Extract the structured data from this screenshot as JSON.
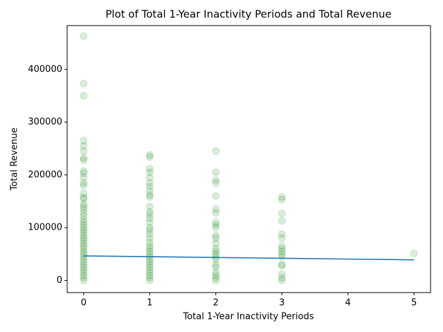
{
  "chart_data": {
    "type": "scatter",
    "title": "Plot of Total 1-Year Inactivity Periods and Total Revenue",
    "xlabel": "Total 1-Year Inactivity Periods",
    "ylabel": "Total Revenue",
    "xlim": [
      -0.25,
      5.25
    ],
    "ylim": [
      -23000,
      483000
    ],
    "xticks": [
      0,
      1,
      2,
      3,
      4,
      5
    ],
    "yticks": [
      0,
      100000,
      200000,
      300000,
      400000
    ],
    "series": [
      {
        "color": "green",
        "alpha": 0.15,
        "style": "points",
        "x": [
          0,
          0,
          0,
          0,
          0,
          0,
          0,
          0,
          0,
          0,
          0,
          0,
          0,
          0,
          0,
          0,
          0,
          0,
          0,
          0,
          0,
          0,
          0,
          0,
          0,
          0,
          0,
          0,
          0,
          0,
          0,
          0,
          0,
          0,
          0,
          0,
          0,
          0,
          0,
          0,
          0,
          0,
          0,
          0,
          0,
          1,
          1,
          1,
          1,
          1,
          1,
          1,
          1,
          1,
          1,
          1,
          1,
          1,
          1,
          1,
          1,
          1,
          1,
          1,
          1,
          1,
          1,
          1,
          1,
          1,
          1,
          1,
          1,
          1,
          1,
          1,
          1,
          1,
          1,
          2,
          2,
          2,
          2,
          2,
          2,
          2,
          2,
          2,
          2,
          2,
          2,
          2,
          2,
          2,
          2,
          2,
          2,
          2,
          2,
          2,
          2,
          2,
          2,
          3,
          3,
          3,
          3,
          3,
          3,
          3,
          3,
          3,
          3,
          3,
          3,
          3,
          3,
          3,
          3,
          5
        ],
        "values": [
          463000,
          373000,
          350000,
          265000,
          255000,
          245000,
          232000,
          228000,
          207000,
          203000,
          195000,
          185000,
          180000,
          165000,
          157000,
          155000,
          145000,
          140000,
          135000,
          128000,
          122000,
          115000,
          110000,
          105000,
          100000,
          95000,
          90000,
          85000,
          80000,
          75000,
          70000,
          65000,
          60000,
          55000,
          50000,
          45000,
          40000,
          35000,
          30000,
          25000,
          20000,
          15000,
          10000,
          5000,
          0,
          238000,
          234000,
          212000,
          205000,
          195000,
          185000,
          178000,
          170000,
          162000,
          158000,
          140000,
          130000,
          125000,
          118000,
          110000,
          100000,
          95000,
          88000,
          80000,
          72000,
          65000,
          60000,
          55000,
          50000,
          45000,
          40000,
          35000,
          30000,
          25000,
          20000,
          15000,
          10000,
          5000,
          0,
          245000,
          205000,
          190000,
          185000,
          160000,
          135000,
          128000,
          110000,
          105000,
          100000,
          85000,
          80000,
          70000,
          60000,
          55000,
          50000,
          45000,
          40000,
          30000,
          25000,
          15000,
          10000,
          5000,
          0,
          158000,
          153000,
          127000,
          113000,
          88000,
          80000,
          65000,
          60000,
          55000,
          50000,
          45000,
          30000,
          28000,
          12000,
          5000,
          0,
          51000
        ]
      },
      {
        "color": "#1f77b4",
        "alpha": 1,
        "style": "line",
        "x": [
          0,
          5
        ],
        "values": [
          46500,
          39000
        ]
      }
    ]
  }
}
